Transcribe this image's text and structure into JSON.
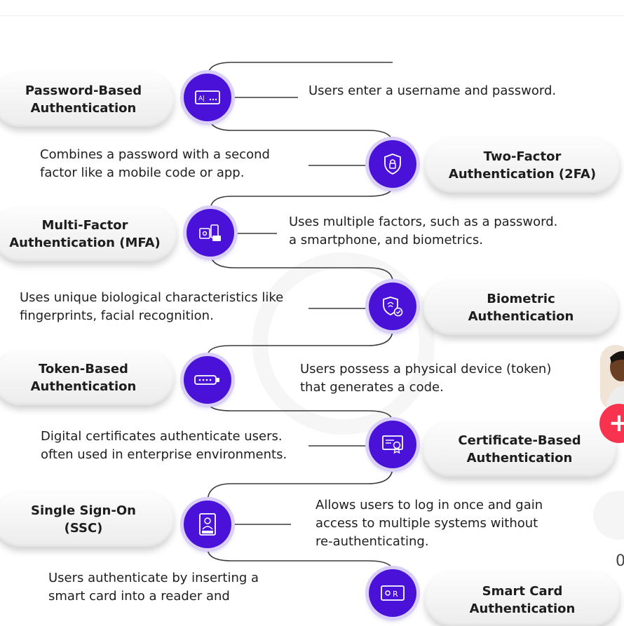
{
  "accent_color": "#4a12d8",
  "methods": [
    {
      "title_line1": "Password-Based",
      "title_line2": "Authentication",
      "icon": "password-field-icon",
      "desc_line1": "Users enter a username and password.",
      "desc_line2": "",
      "desc_line3": ""
    },
    {
      "title_line1": "Two-Factor",
      "title_line2": "Authentication (2FA)",
      "icon": "shield-lock-icon",
      "desc_line1": "Combines a password with a second",
      "desc_line2": "factor like a mobile code or app.",
      "desc_line3": ""
    },
    {
      "title_line1": "Multi-Factor",
      "title_line2": "Authentication (MFA)",
      "icon": "multi-device-icon",
      "desc_line1": "Uses multiple factors, such as a password.",
      "desc_line2": "a smartphone, and biometrics.",
      "desc_line3": ""
    },
    {
      "title_line1": "Biometric",
      "title_line2": "Authentication",
      "icon": "biometric-shield-icon",
      "desc_line1": "Uses unique biological characteristics like",
      "desc_line2": "fingerprints, facial recognition.",
      "desc_line3": ""
    },
    {
      "title_line1": "Token-Based",
      "title_line2": "Authentication",
      "icon": "token-device-icon",
      "desc_line1": "Users possess a physical device (token)",
      "desc_line2": "that generates a code.",
      "desc_line3": ""
    },
    {
      "title_line1": "Certificate-Based",
      "title_line2": "Authentication",
      "icon": "certificate-icon",
      "desc_line1": "Digital certificates authenticate users.",
      "desc_line2": "often used in enterprise environments.",
      "desc_line3": ""
    },
    {
      "title_line1": "Single Sign-On",
      "title_line2": "(SSC)",
      "icon": "id-badge-icon",
      "desc_line1": "Allows users to log in once and gain",
      "desc_line2": "access to multiple systems without",
      "desc_line3": "re-authenticating."
    },
    {
      "title_line1": "Smart Card",
      "title_line2": "Authentication",
      "icon": "smart-card-icon",
      "desc_line1": "Users authenticate by inserting a",
      "desc_line2": "smart card into a reader and",
      "desc_line3": ""
    }
  ],
  "overlay": {
    "likes_count": "0",
    "plus_label": "+"
  }
}
